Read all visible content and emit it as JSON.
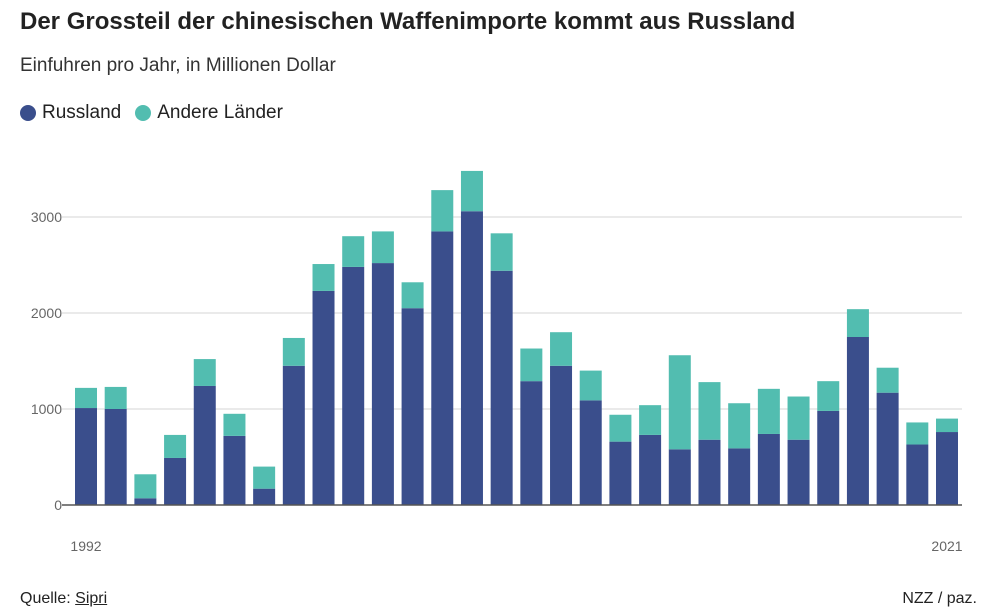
{
  "chart_data": {
    "type": "bar",
    "stacked": true,
    "title": "Der Grossteil der chinesischen Waffenimporte kommt aus Russland",
    "subtitle": "Einfuhren pro Jahr, in Millionen Dollar",
    "xlabel": "",
    "ylabel": "",
    "ylim": [
      0,
      3500
    ],
    "yticks": [
      0,
      1000,
      2000,
      3000
    ],
    "x_tick_labels": [
      "1992",
      "2021"
    ],
    "grid": true,
    "legend_placement": "top-left",
    "categories": [
      1992,
      1993,
      1994,
      1995,
      1996,
      1997,
      1998,
      1999,
      2000,
      2001,
      2002,
      2003,
      2004,
      2005,
      2006,
      2007,
      2008,
      2009,
      2010,
      2011,
      2012,
      2013,
      2014,
      2015,
      2016,
      2017,
      2018,
      2019,
      2020,
      2021
    ],
    "series": [
      {
        "name": "Russland",
        "color": "#3a4e8c",
        "values": [
          1010,
          1000,
          70,
          490,
          1240,
          720,
          170,
          1450,
          2230,
          2480,
          2520,
          2050,
          2850,
          3060,
          2440,
          1290,
          1450,
          1090,
          660,
          730,
          580,
          680,
          590,
          740,
          680,
          980,
          1750,
          1170,
          630,
          760
        ]
      },
      {
        "name": "Andere Länder",
        "color": "#52bdb0",
        "values": [
          210,
          230,
          250,
          240,
          280,
          230,
          230,
          290,
          280,
          320,
          330,
          270,
          430,
          420,
          390,
          340,
          350,
          310,
          280,
          310,
          980,
          600,
          470,
          470,
          450,
          310,
          290,
          260,
          230,
          140
        ]
      }
    ]
  },
  "footer": {
    "source_label": "Quelle:",
    "source_link": "Sipri",
    "credit": "NZZ / paz."
  }
}
